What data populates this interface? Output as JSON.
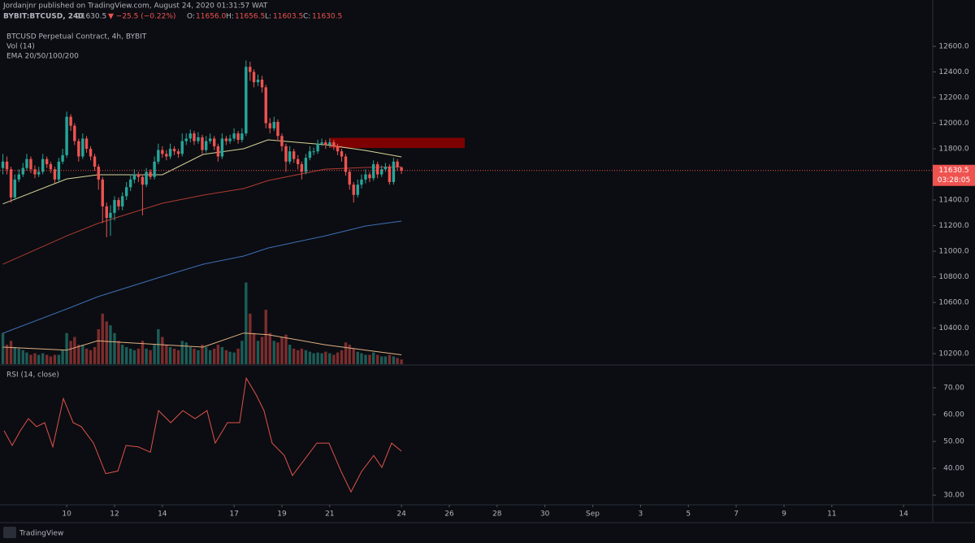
{
  "header": {
    "published": "Jordanjnr published on TradingView.com, August 24, 2020 01:31:57 WAT",
    "symbol": "BYBIT:BTCUSD, 240",
    "last": "11630.5",
    "change": "▼ −25.5 (−0.22%)",
    "ohlc": [
      {
        "key": "O:",
        "value": "11656.0"
      },
      {
        "key": "H:",
        "value": "11656.5"
      },
      {
        "key": "L:",
        "value": "11603.5"
      },
      {
        "key": "C:",
        "value": "11630.5"
      }
    ]
  },
  "footer": {
    "brand": "TradingView"
  },
  "chart_data": {
    "type": "candlestick",
    "legend": [
      "BTCUSD Perpetual Contract, 4h, BYBIT",
      "Vol (14)",
      "EMA 20/50/100/200"
    ],
    "up_color": "#26a69a",
    "down_color": "#ef5350",
    "volume_up_color": "#1d5c57",
    "volume_down_color": "#7c2d2d",
    "x": [
      7.33,
      7.5,
      7.67,
      7.83,
      8,
      8.17,
      8.33,
      8.5,
      8.67,
      8.83,
      9,
      9.17,
      9.33,
      9.5,
      9.67,
      9.83,
      10,
      10.17,
      10.33,
      10.5,
      10.67,
      10.83,
      11,
      11.17,
      11.33,
      11.5,
      11.67,
      11.83,
      12,
      12.17,
      12.33,
      12.5,
      12.67,
      12.83,
      13,
      13.17,
      13.33,
      13.5,
      13.67,
      13.83,
      14,
      14.17,
      14.33,
      14.5,
      14.67,
      14.83,
      15,
      15.17,
      15.33,
      15.5,
      15.67,
      15.83,
      16,
      16.17,
      16.33,
      16.5,
      16.67,
      16.83,
      17,
      17.17,
      17.33,
      17.5,
      17.67,
      17.83,
      18,
      18.17,
      18.33,
      18.5,
      18.67,
      18.83,
      19,
      19.17,
      19.33,
      19.5,
      19.67,
      19.83,
      20,
      20.17,
      20.33,
      20.5,
      20.67,
      20.83,
      21,
      21.17,
      21.33,
      21.5,
      21.67,
      21.83,
      22,
      22.17,
      22.33,
      22.5,
      22.67,
      22.83,
      23,
      23.17,
      23.33,
      23.5,
      23.67,
      23.83,
      24
    ],
    "open": [
      11650,
      11700,
      11640,
      11420,
      11560,
      11600,
      11650,
      11720,
      11640,
      11600,
      11620,
      11720,
      11680,
      11640,
      11560,
      11700,
      11750,
      12050,
      11980,
      11860,
      11740,
      11880,
      11800,
      11740,
      11660,
      11560,
      11350,
      11260,
      11300,
      11400,
      11350,
      11430,
      11500,
      11560,
      11600,
      11580,
      11520,
      11620,
      11580,
      11700,
      11790,
      11760,
      11740,
      11800,
      11780,
      11760,
      11860,
      11880,
      11920,
      11860,
      11890,
      11790,
      11860,
      11880,
      11820,
      11740,
      11880,
      11860,
      11880,
      11920,
      11870,
      11920,
      12440,
      12400,
      12320,
      12340,
      12280,
      12000,
      11960,
      12010,
      11900,
      11820,
      11700,
      11780,
      11720,
      11680,
      11620,
      11730,
      11780,
      11780,
      11840,
      11850,
      11830,
      11850,
      11820,
      11780,
      11740,
      11620,
      11520,
      11440,
      11520,
      11560,
      11600,
      11570,
      11680,
      11600,
      11640,
      11660,
      11540,
      11700,
      11656
    ],
    "high": [
      11760,
      11740,
      11660,
      11600,
      11640,
      11690,
      11760,
      11740,
      11670,
      11660,
      11760,
      11740,
      11700,
      11660,
      11730,
      11800,
      12090,
      12070,
      12000,
      11880,
      11920,
      11900,
      11820,
      11760,
      11680,
      11580,
      11380,
      11360,
      11430,
      11420,
      11460,
      11540,
      11600,
      11640,
      11620,
      11600,
      11650,
      11640,
      11740,
      11840,
      11820,
      11790,
      11840,
      11820,
      11800,
      11920,
      11920,
      11950,
      11940,
      11930,
      11910,
      11900,
      11920,
      11900,
      11840,
      11920,
      11900,
      11910,
      11960,
      11940,
      11960,
      12490,
      12480,
      12420,
      12380,
      12370,
      12300,
      12040,
      12050,
      12030,
      11920,
      11840,
      11820,
      11800,
      11750,
      11700,
      11760,
      11820,
      11810,
      11870,
      11880,
      11870,
      11880,
      11870,
      11840,
      11800,
      11760,
      11640,
      11540,
      11560,
      11600,
      11640,
      11620,
      11710,
      11700,
      11670,
      11690,
      11680,
      11730,
      11720,
      11656.5
    ],
    "low": [
      11600,
      11600,
      11380,
      11400,
      11540,
      11580,
      11630,
      11610,
      11570,
      11580,
      11600,
      11650,
      11610,
      11530,
      11540,
      11680,
      11730,
      11940,
      11830,
      11700,
      11720,
      11770,
      11710,
      11630,
      11480,
      11220,
      11110,
      11120,
      11240,
      11320,
      11320,
      11400,
      11470,
      11530,
      11540,
      11280,
      11500,
      11560,
      11560,
      11680,
      11730,
      11710,
      11720,
      11750,
      11730,
      11740,
      11830,
      11850,
      11830,
      11840,
      11760,
      11770,
      11840,
      11790,
      11700,
      11720,
      11830,
      11840,
      11860,
      11840,
      11850,
      11900,
      12330,
      12280,
      12290,
      12240,
      11960,
      11920,
      11940,
      11860,
      11780,
      11620,
      11680,
      11690,
      11640,
      11560,
      11600,
      11710,
      11750,
      11760,
      11820,
      11800,
      11810,
      11790,
      11750,
      11700,
      11590,
      11480,
      11380,
      11420,
      11490,
      11530,
      11540,
      11550,
      11570,
      11580,
      11620,
      11520,
      11520,
      11630,
      11603.5
    ],
    "close": [
      11700,
      11640,
      11420,
      11560,
      11600,
      11650,
      11720,
      11640,
      11600,
      11620,
      11720,
      11680,
      11640,
      11560,
      11700,
      11750,
      12050,
      11980,
      11860,
      11740,
      11880,
      11800,
      11740,
      11660,
      11560,
      11350,
      11260,
      11300,
      11400,
      11350,
      11430,
      11500,
      11560,
      11600,
      11580,
      11520,
      11620,
      11580,
      11700,
      11790,
      11760,
      11740,
      11800,
      11780,
      11760,
      11860,
      11880,
      11920,
      11860,
      11890,
      11790,
      11860,
      11880,
      11820,
      11740,
      11880,
      11860,
      11880,
      11920,
      11870,
      11920,
      12440,
      12400,
      12320,
      12340,
      12280,
      12000,
      11960,
      12010,
      11900,
      11820,
      11700,
      11780,
      11720,
      11680,
      11620,
      11730,
      11780,
      11780,
      11840,
      11850,
      11830,
      11850,
      11820,
      11780,
      11740,
      11620,
      11520,
      11440,
      11520,
      11560,
      11600,
      11570,
      11680,
      11600,
      11640,
      11660,
      11540,
      11700,
      11656,
      11630.5
    ],
    "volume": [
      40,
      25,
      30,
      22,
      20,
      18,
      15,
      12,
      14,
      12,
      14,
      12,
      10,
      12,
      12,
      18,
      40,
      30,
      35,
      25,
      25,
      20,
      18,
      22,
      45,
      65,
      55,
      50,
      40,
      30,
      25,
      22,
      20,
      18,
      20,
      30,
      20,
      18,
      25,
      45,
      35,
      25,
      22,
      20,
      18,
      30,
      28,
      22,
      20,
      18,
      25,
      22,
      18,
      20,
      25,
      22,
      18,
      16,
      15,
      20,
      30,
      105,
      65,
      40,
      30,
      35,
      70,
      40,
      30,
      28,
      35,
      38,
      25,
      20,
      18,
      20,
      18,
      16,
      14,
      15,
      14,
      16,
      14,
      12,
      15,
      18,
      28,
      25,
      20,
      16,
      14,
      12,
      12,
      15,
      12,
      10,
      10,
      12,
      10,
      8,
      6
    ],
    "volume_lim": [
      0,
      115
    ],
    "volume_ma": {
      "color": "#e0b080",
      "x": [
        7.33,
        10,
        11.29,
        14,
        15.7,
        17.4,
        18.42,
        20.8,
        22.5,
        24
      ],
      "values": [
        22,
        18,
        30,
        25,
        22,
        40,
        38,
        25,
        18,
        12
      ]
    },
    "overlays": [
      {
        "color": "#d9d49a",
        "x": [
          7.33,
          10,
          11.29,
          14,
          15.7,
          17.4,
          18.42,
          20.8,
          22.5,
          24
        ],
        "values": [
          11370,
          11565,
          11597,
          11597,
          11756,
          11800,
          11870,
          11832,
          11787,
          11737
        ]
      },
      {
        "color": "#b03a32",
        "x": [
          7.33,
          10,
          11.29,
          14,
          15.7,
          17.4,
          18.42,
          20.8,
          22.5,
          24
        ],
        "values": [
          10898,
          11120,
          11216,
          11375,
          11438,
          11489,
          11552,
          11641,
          11654,
          11660
        ]
      },
      {
        "color": "#3f6fb5",
        "x": [
          7.33,
          10,
          11.29,
          14,
          15.7,
          17.4,
          18.42,
          20.8,
          22.5,
          24
        ],
        "values": [
          10359,
          10549,
          10644,
          10803,
          10898,
          10962,
          11025,
          11120,
          11197,
          11235
        ]
      }
    ],
    "zone": {
      "color": "#8b0000",
      "x": [
        20.97,
        26.65
      ],
      "y": [
        11806,
        11886
      ]
    },
    "countdown": "03:28:05",
    "xlim": [
      7.21,
      46.22
    ],
    "xticks": [
      10,
      12,
      14,
      17,
      19,
      21,
      24,
      26,
      28,
      30,
      {
        "value": 32,
        "label": "Sep"
      },
      {
        "value": 34,
        "label": "3"
      },
      {
        "value": 36,
        "label": "5"
      },
      {
        "value": 38,
        "label": "7"
      },
      {
        "value": 40,
        "label": "9"
      },
      {
        "value": 42,
        "label": "11"
      },
      {
        "value": 45,
        "label": "14"
      }
    ],
    "ylim": [
      10118,
      12962
    ],
    "yticks": [
      {
        "value": 10200,
        "label": "10200.0"
      },
      {
        "value": 10400,
        "label": "10400.0"
      },
      {
        "value": 10600,
        "label": "10600.0"
      },
      {
        "value": 10800,
        "label": "10800.0"
      },
      {
        "value": 11000,
        "label": "11000.0"
      },
      {
        "value": 11200,
        "label": "11200.0"
      },
      {
        "value": 11400,
        "label": "11400.0"
      },
      {
        "value": 11600,
        "label": "11600.0"
      },
      {
        "value": 11800,
        "label": "11800.0"
      },
      {
        "value": 12000,
        "label": "12000.0"
      },
      {
        "value": 12200,
        "label": "12200.0"
      },
      {
        "value": 12400,
        "label": "12400.0"
      },
      {
        "value": 12600,
        "label": "12600.0"
      }
    ],
    "rsi": {
      "title": "RSI (14, close)",
      "color": "#e0524a",
      "x": [
        7.38,
        7.72,
        8.06,
        8.4,
        8.74,
        9.08,
        9.42,
        9.86,
        10.27,
        10.61,
        11.12,
        11.63,
        12.14,
        12.48,
        12.99,
        13.5,
        13.84,
        14.35,
        14.86,
        15.37,
        15.87,
        16.21,
        16.72,
        17.23,
        17.51,
        17.91,
        18.25,
        18.59,
        19.1,
        19.44,
        19.95,
        20.46,
        20.97,
        21.48,
        21.89,
        22.33,
        22.84,
        23.18,
        23.59,
        24
      ],
      "values": [
        54,
        48.5,
        54,
        58.5,
        55.5,
        57,
        48,
        66,
        57,
        55.5,
        49.4,
        38,
        39,
        48.5,
        48,
        46,
        61.5,
        57,
        61.5,
        58.5,
        61.5,
        49.4,
        57,
        57,
        73.6,
        67.6,
        61.5,
        49.4,
        44.8,
        37.3,
        43.3,
        49.4,
        49.4,
        38.8,
        31.2,
        38.8,
        44.8,
        40.3,
        49.4,
        46.4
      ],
      "ylim": [
        26.7,
        78.2
      ],
      "yticks": [
        {
          "value": 30,
          "label": "30.00"
        },
        {
          "value": 40,
          "label": "40.00"
        },
        {
          "value": 50,
          "label": "50.00"
        },
        {
          "value": 60,
          "label": "60.00"
        },
        {
          "value": 70,
          "label": "70.00"
        }
      ]
    }
  }
}
